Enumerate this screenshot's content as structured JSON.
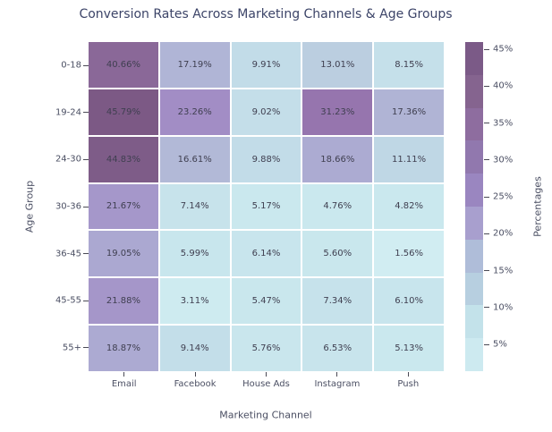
{
  "chart_data": {
    "type": "heatmap",
    "title": "Conversion Rates Across Marketing Channels & Age Groups",
    "xlabel": "Marketing Channel",
    "ylabel": "Age Group",
    "x_categories": [
      "Email",
      "Facebook",
      "House Ads",
      "Instagram",
      "Push"
    ],
    "y_categories": [
      "0-18",
      "19-24",
      "24-30",
      "30-36",
      "36-45",
      "45-55",
      "55+"
    ],
    "values": [
      [
        40.66,
        17.19,
        9.91,
        13.01,
        8.15
      ],
      [
        45.79,
        23.26,
        9.02,
        31.23,
        17.36
      ],
      [
        44.83,
        16.61,
        9.88,
        18.66,
        11.11
      ],
      [
        21.67,
        7.14,
        5.17,
        4.76,
        4.82
      ],
      [
        19.05,
        5.99,
        6.14,
        5.6,
        1.56
      ],
      [
        21.88,
        3.11,
        5.47,
        7.34,
        6.1
      ],
      [
        18.87,
        9.14,
        5.76,
        6.53,
        5.13
      ]
    ],
    "cell_label_suffix": "%",
    "cell_label_decimals": 2,
    "grid": true,
    "legend_position": "right-colorbar",
    "colorbar": {
      "label": "Percentages",
      "tick_labels": [
        "45%",
        "40%",
        "35%",
        "30%",
        "25%",
        "20%",
        "15%",
        "10%",
        "5%"
      ],
      "segment_colors_top_to_bottom": [
        "#7b5a87",
        "#85648f",
        "#8e6d9f",
        "#9178ae",
        "#9a86c0",
        "#a89fce",
        "#afbdd9",
        "#b7cfe0",
        "#c3e2ea",
        "#cdeaf0"
      ]
    },
    "colormap_stops": [
      [
        0,
        "#d4eff4"
      ],
      [
        5,
        "#cae8ee"
      ],
      [
        10,
        "#c2dce8"
      ],
      [
        15,
        "#b6c4db"
      ],
      [
        20,
        "#a9a2cf"
      ],
      [
        25,
        "#9e82c0"
      ],
      [
        30,
        "#9877b1"
      ],
      [
        35,
        "#9170a5"
      ],
      [
        40,
        "#8c6a9b"
      ],
      [
        45,
        "#7d5b87"
      ],
      [
        48,
        "#785581"
      ]
    ],
    "colors": {
      "title_text": "#3c4468",
      "axis_text": "#4b4f63",
      "cell_text": "#3f3f50",
      "tick_mark": "#4a4a55",
      "gridline": "#ffffff",
      "background": "#ffffff"
    }
  }
}
